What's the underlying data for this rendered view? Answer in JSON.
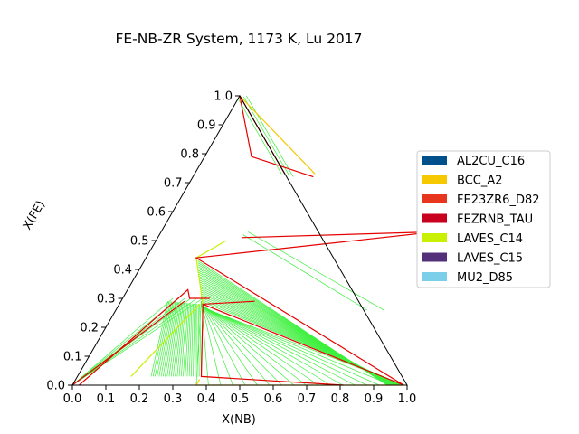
{
  "chart_data": {
    "type": "ternary-phase-diagram",
    "title": "FE-NB-ZR System, 1173 K, Lu 2017",
    "xlabel": "X(NB)",
    "ylabel": "X(FE)",
    "xlim": [
      0,
      1
    ],
    "ylim": [
      0,
      1
    ],
    "x_ticks": [
      "0.0",
      "0.1",
      "0.2",
      "0.3",
      "0.4",
      "0.5",
      "0.6",
      "0.7",
      "0.8",
      "0.9",
      "1.0"
    ],
    "y_ticks": [
      "0.0",
      "0.1",
      "0.2",
      "0.3",
      "0.4",
      "0.5",
      "0.6",
      "0.7",
      "0.8",
      "0.9",
      "1.0"
    ],
    "legend": {
      "position": "right",
      "entries": [
        {
          "name": "AL2CU_C16",
          "color": "#00508c"
        },
        {
          "name": "BCC_A2",
          "color": "#f5c800"
        },
        {
          "name": "FE23ZR6_D82",
          "color": "#e8361e"
        },
        {
          "name": "FEZRNB_TAU",
          "color": "#c8001e"
        },
        {
          "name": "LAVES_C14",
          "color": "#c8f000"
        },
        {
          "name": "LAVES_C15",
          "color": "#55307a"
        },
        {
          "name": "MU2_D85",
          "color": "#7ccfe8"
        }
      ]
    },
    "colors": {
      "boundary": "#e60000",
      "tieline": "#3cf03c",
      "laves_boundary": "#c8f000",
      "bcc_boundary": "#f5c800",
      "frame": "#000000"
    },
    "phase_boundaries": [
      {
        "points": [
          [
            0.27,
            0.73
          ],
          [
            0.0,
            1.0
          ],
          [
            0.14,
            0.79
          ],
          [
            0.36,
            0.72
          ]
        ]
      },
      {
        "points": [
          [
            0.25,
            0.51
          ],
          [
            0.82,
            0.53
          ],
          [
            0.15,
            0.44
          ],
          [
            0.99,
            0.0
          ]
        ]
      },
      {
        "points": [
          [
            0.4,
            0.29
          ],
          [
            0.25,
            0.28
          ],
          [
            0.37,
            0.03
          ],
          [
            0.81,
            0.0
          ]
        ]
      },
      {
        "points": [
          [
            0.25,
            0.28
          ],
          [
            0.99,
            0.0
          ]
        ]
      },
      {
        "points": [
          [
            0.02,
            0.0
          ],
          [
            0.18,
            0.33
          ],
          [
            0.2,
            0.3
          ],
          [
            0.26,
            0.3
          ]
        ]
      },
      {
        "points": [
          [
            0.0,
            0.0
          ],
          [
            0.19,
            0.29
          ]
        ]
      }
    ],
    "phase_region_edges": [
      {
        "phase": "LAVES_C14",
        "points": [
          [
            0.21,
            0.5
          ],
          [
            0.15,
            0.44
          ],
          [
            0.25,
            0.28
          ]
        ]
      },
      {
        "phase": "LAVES_C14",
        "points": [
          [
            0.24,
            0.28
          ],
          [
            0.16,
            0.03
          ]
        ]
      },
      {
        "phase": "BCC_A2",
        "points": [
          [
            0.37,
            0.02
          ],
          [
            0.37,
            0.0
          ],
          [
            0.99,
            0.0
          ]
        ]
      },
      {
        "phase": "BCC_A2",
        "points": [
          [
            0.36,
            0.73
          ],
          [
            0.0,
            1.0
          ]
        ]
      }
    ],
    "tie_line_fans": [
      {
        "from": [
          [
            0.25,
            0.52
          ],
          [
            0.26,
            0.53
          ]
        ],
        "to": [
          [
            0.75,
            0.26
          ],
          [
            0.8,
            0.26
          ]
        ],
        "count": 2
      },
      {
        "from": [
          [
            0.16,
            0.43
          ],
          [
            0.24,
            0.29
          ]
        ],
        "to": [
          [
            0.94,
            0.0
          ],
          [
            0.99,
            0.0
          ]
        ],
        "count": 22
      },
      {
        "from": [
          [
            0.24,
            0.29
          ],
          [
            0.25,
            0.27
          ]
        ],
        "to": [
          [
            0.37,
            0.0
          ],
          [
            0.99,
            0.0
          ]
        ],
        "count": 18
      },
      {
        "from": [
          [
            0.14,
            0.29
          ],
          [
            0.24,
            0.28
          ]
        ],
        "to": [
          [
            0.22,
            0.03
          ],
          [
            0.37,
            0.03
          ]
        ],
        "count": 26
      },
      {
        "from": [
          [
            0.0,
            0.0
          ],
          [
            0.0,
            0.0
          ]
        ],
        "to": [
          [
            0.15,
            0.3
          ],
          [
            0.24,
            0.3
          ]
        ],
        "count": 6
      },
      {
        "from": [
          [
            0.26,
            0.73
          ],
          [
            0.3,
            0.72
          ]
        ],
        "to": [
          [
            0.0,
            0.99
          ],
          [
            0.02,
            1.0
          ]
        ],
        "count": 4
      }
    ]
  }
}
